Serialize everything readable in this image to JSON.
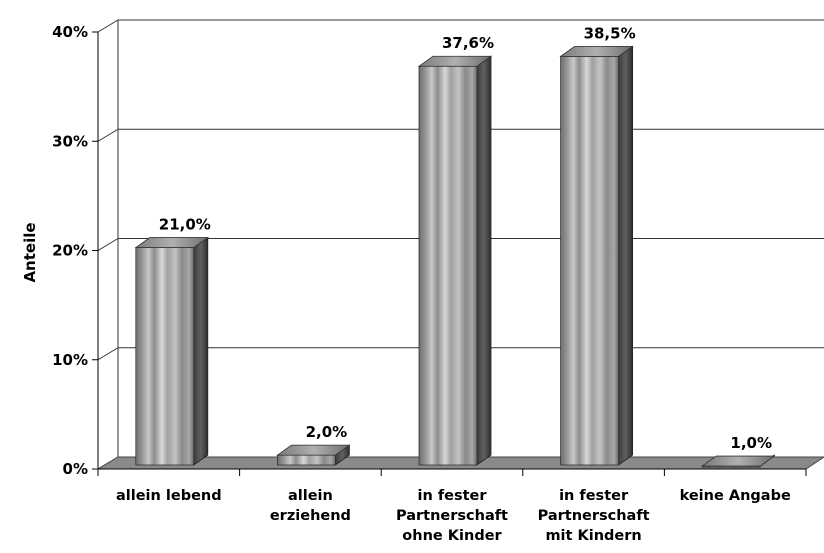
{
  "chart_data": {
    "type": "bar",
    "title": "",
    "xlabel": "",
    "ylabel": "Anteile",
    "ylim": [
      0,
      40
    ],
    "yticks": [
      "0%",
      "10%",
      "20%",
      "30%",
      "40%"
    ],
    "grid": true,
    "categories": [
      [
        "allein lebend"
      ],
      [
        "allein",
        "erziehend"
      ],
      [
        "in fester",
        "Partnerschaft",
        "ohne Kinder"
      ],
      [
        "in fester",
        "Partnerschaft",
        "mit Kindern"
      ],
      [
        "keine Angabe"
      ]
    ],
    "values": [
      21.0,
      2.0,
      37.6,
      38.5,
      1.0
    ],
    "data_labels": [
      "21,0%",
      "2,0%",
      "37,6%",
      "38,5%",
      "1,0%"
    ],
    "colors": {
      "bar_light": "#c8c8c8",
      "bar_dark": "#5a5a5a",
      "floor": "#8a8a8a",
      "grid": "#333333"
    }
  }
}
